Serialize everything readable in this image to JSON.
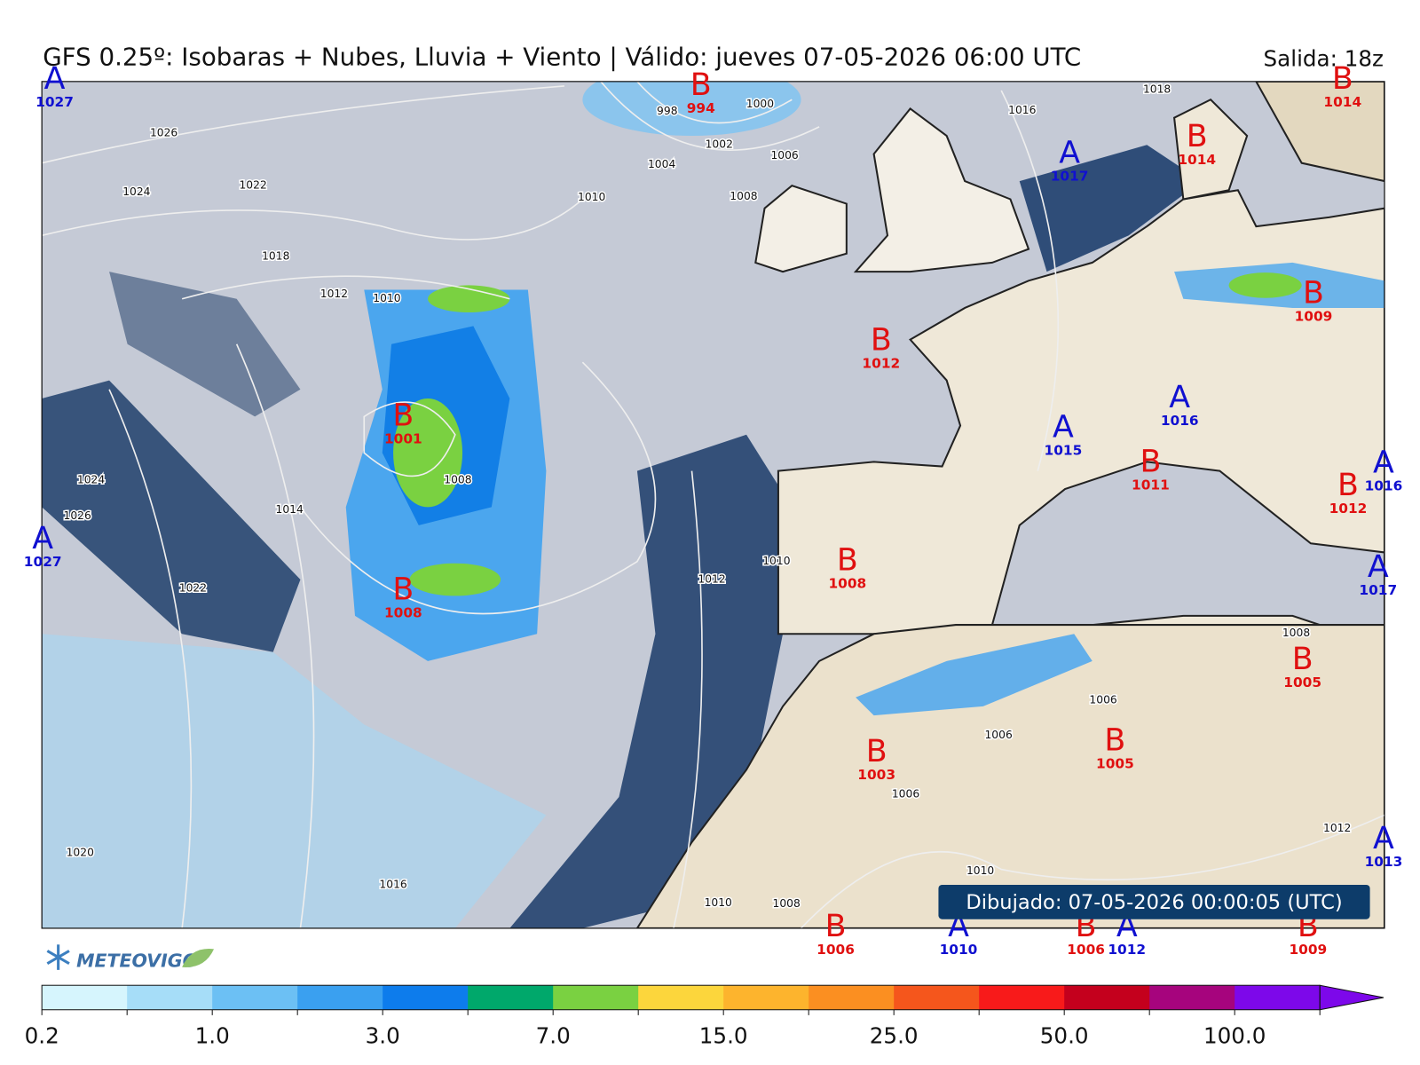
{
  "header": {
    "title": "GFS 0.25º: Isobaras + Nubes, Lluvia + Viento | Válido: jueves 07-05-2026 06:00 UTC",
    "run": "Salida: 18z"
  },
  "pressure_centers": [
    {
      "letter": "A",
      "value": 1027
    },
    {
      "letter": "B",
      "value": 994
    },
    {
      "letter": "B",
      "value": 1014
    },
    {
      "letter": "A",
      "value": 1017
    },
    {
      "letter": "B",
      "value": 1014
    },
    {
      "letter": "B",
      "value": 1009
    },
    {
      "letter": "B",
      "value": 1012
    },
    {
      "letter": "A",
      "value": 1016
    },
    {
      "letter": "A",
      "value": 1015
    },
    {
      "letter": "B",
      "value": 1001
    },
    {
      "letter": "B",
      "value": 1011
    },
    {
      "letter": "A",
      "value": 1016
    },
    {
      "letter": "B",
      "value": 1012
    },
    {
      "letter": "A",
      "value": 1027
    },
    {
      "letter": "B",
      "value": 1008
    },
    {
      "letter": "A",
      "value": 1017
    },
    {
      "letter": "B",
      "value": 1008
    },
    {
      "letter": "B",
      "value": 1005
    },
    {
      "letter": "B",
      "value": 1005
    },
    {
      "letter": "B",
      "value": 1003
    },
    {
      "letter": "A",
      "value": 1013
    },
    {
      "letter": "B",
      "value": 1006
    },
    {
      "letter": "A",
      "value": 1010
    },
    {
      "letter": "B",
      "value": 1006
    },
    {
      "letter": "A",
      "value": 1012
    },
    {
      "letter": "B",
      "value": 1009
    }
  ],
  "isobar_labels": [
    1026,
    1024,
    1022,
    1018,
    1012,
    1010,
    998,
    1000,
    1002,
    1004,
    1006,
    1008,
    1010,
    1016,
    1018,
    1024,
    1026,
    1014,
    1022,
    1008,
    1012,
    1010,
    1008,
    1006,
    1006,
    1006,
    1012,
    1020,
    1016,
    1010,
    1010,
    1008
  ],
  "timestamp": "Dibujado: 07-05-2026 00:00:05 (UTC)",
  "logo": "METEOVIGO",
  "colorbar": {
    "colors": [
      "#d6f5fd",
      "#a6ddf8",
      "#6cc0f4",
      "#3aa0f0",
      "#0d7cec",
      "#00a86b",
      "#7ad141",
      "#fcd63c",
      "#fdb42d",
      "#fb8f21",
      "#f5561c",
      "#f81a1a",
      "#c4001d",
      "#a6047d",
      "#7d08ea"
    ],
    "tick_labels": [
      "0.2",
      "1.0",
      "3.0",
      "7.0",
      "15.0",
      "25.0",
      "50.0",
      "100.0"
    ]
  }
}
